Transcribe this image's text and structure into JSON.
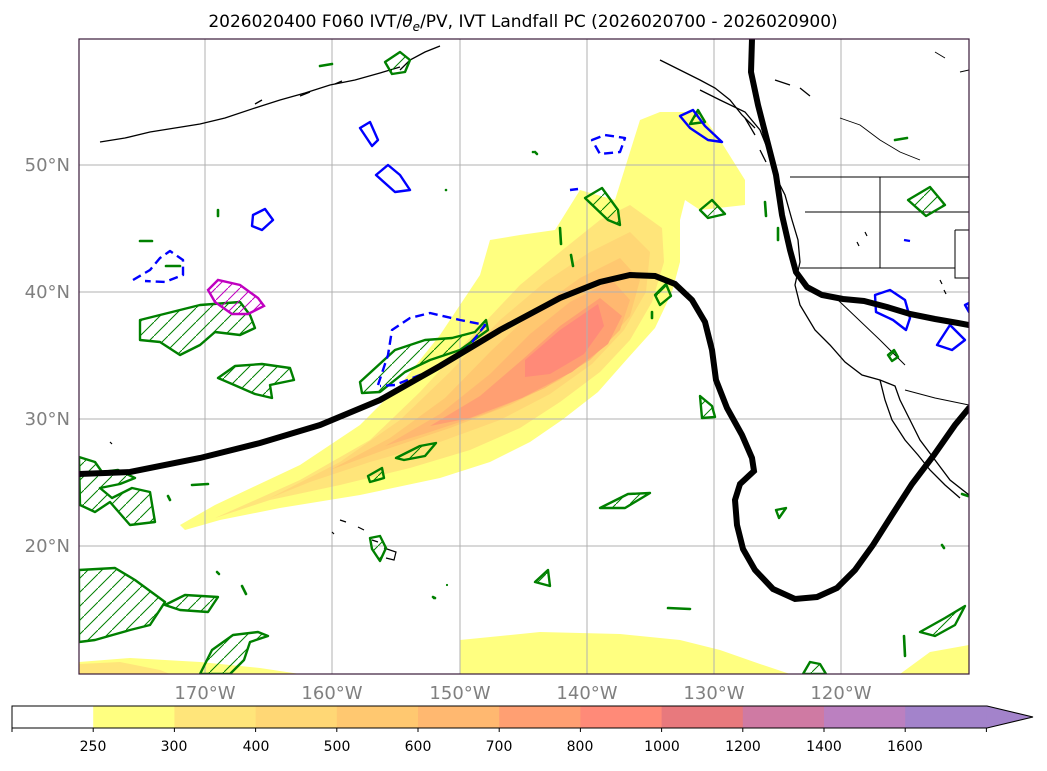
{
  "title": {
    "prefix": "2026020400 F060 IVT/",
    "theta": "θ",
    "theta_sub": "e",
    "suffix": "/PV, IVT Landfall PC (2026020700 - 2026020900)"
  },
  "axes": {
    "lon_ticks": [
      "170°W",
      "160°W",
      "150°W",
      "140°W",
      "130°W",
      "120°W"
    ],
    "lat_ticks": [
      "50°N",
      "40°N",
      "30°N",
      "20°N"
    ],
    "lon_values": [
      -170,
      -160,
      -150,
      -140,
      -130,
      -120
    ],
    "lat_values": [
      50,
      40,
      30,
      20
    ],
    "tick_color": "#808080"
  },
  "colorbar": {
    "labels": [
      "250",
      "300",
      "400",
      "500",
      "600",
      "700",
      "800",
      "1000",
      "1200",
      "1400",
      "1600"
    ],
    "colors": [
      "#ffffff",
      "#ffff80",
      "#ffe57a",
      "#ffd775",
      "#ffc870",
      "#ffb870",
      "#ff9f72",
      "#ff8a78",
      "#e8797d",
      "#cf7aa3",
      "#bb80c0",
      "#a383cb"
    ],
    "extend": "max"
  },
  "legend_colors": {
    "ivt_fill": "#ffff80",
    "steering_contour": "#000000",
    "pv_positive": "#008000",
    "pv_negative": "#0000ff",
    "pv_strong": "#c000c0",
    "coastline": "#000000"
  }
}
